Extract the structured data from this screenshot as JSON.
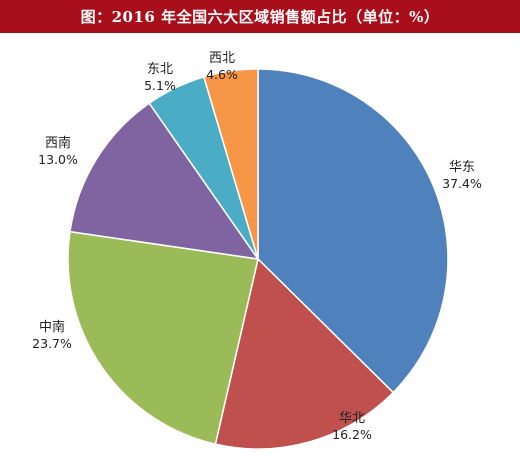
{
  "title": "图：2016 年全国六大区域销售额占比（单位：%）",
  "colors": {
    "title_background": "#a80f1a",
    "title_text": "#ffffff"
  },
  "chart_data": {
    "type": "pie",
    "title": "图：2016 年全国六大区域销售额占比（单位：%）",
    "start_angle_deg": 0,
    "direction": "clockwise",
    "slices": [
      {
        "label": "华东",
        "value": 37.4,
        "value_label": "37.4%",
        "color": "#4f81bd"
      },
      {
        "label": "华北",
        "value": 16.2,
        "value_label": "16.2%",
        "color": "#c0504d"
      },
      {
        "label": "中南",
        "value": 23.7,
        "value_label": "23.7%",
        "color": "#9bbb59"
      },
      {
        "label": "西南",
        "value": 13.0,
        "value_label": "13.0%",
        "color": "#8064a2"
      },
      {
        "label": "东北",
        "value": 5.1,
        "value_label": "5.1%",
        "color": "#4bacc6"
      },
      {
        "label": "西北",
        "value": 4.6,
        "value_label": "4.6%",
        "color": "#f79646"
      }
    ]
  }
}
